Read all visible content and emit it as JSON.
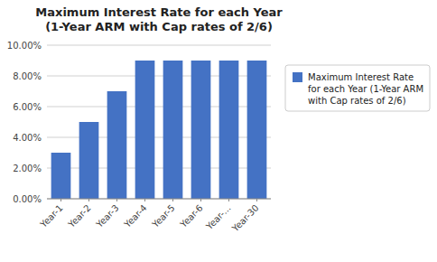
{
  "chart_data": {
    "type": "bar",
    "title": "Maximum Interest Rate for each Year\n(1-Year ARM with Cap rates of 2/6)",
    "categories": [
      "Year-1",
      "Year-2",
      "Year-3",
      "Year-4",
      "Year-5",
      "Year-6",
      "Year-...",
      "Year-30"
    ],
    "series": [
      {
        "name": "Maximum Interest Rate\nfor each Year (1-Year ARM\nwith Cap rates of 2/6)",
        "color": "#4472C4",
        "values": [
          0.03,
          0.05,
          0.07,
          0.09,
          0.09,
          0.09,
          0.09,
          0.09
        ]
      }
    ],
    "ylim": [
      0.0,
      0.1
    ],
    "yticks": [
      {
        "value": 0.0,
        "label": "0.00%"
      },
      {
        "value": 0.02,
        "label": "2.00%"
      },
      {
        "value": 0.04,
        "label": "4.00%"
      },
      {
        "value": 0.06,
        "label": "6.00%"
      },
      {
        "value": 0.08,
        "label": "8.00%"
      },
      {
        "value": 0.1,
        "label": "10.00%"
      }
    ],
    "grid": true,
    "legend": "right"
  }
}
